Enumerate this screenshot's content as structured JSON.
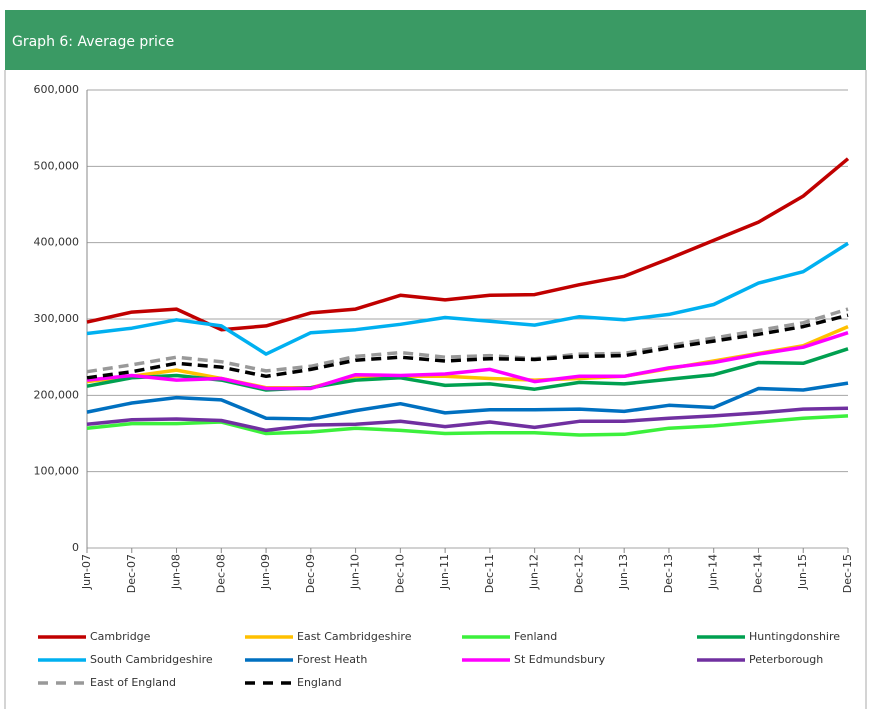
{
  "chart_data": {
    "type": "line",
    "title": "Graph 6: Average price",
    "categories": [
      "Jun-07",
      "Dec-07",
      "Jun-08",
      "Dec-08",
      "Jun-09",
      "Dec-09",
      "Jun-10",
      "Dec-10",
      "Jun-11",
      "Dec-11",
      "Jun-12",
      "Dec-12",
      "Jun-13",
      "Dec-13",
      "Jun-14",
      "Dec-14",
      "Jun-15",
      "Dec-15"
    ],
    "ylim": [
      0,
      600000
    ],
    "yticks": [
      0,
      {
        "value": 100000,
        "label": "100,000"
      },
      {
        "value": 200000,
        "label": "200,000"
      },
      {
        "value": 300000,
        "label": "300,000"
      },
      {
        "value": 400000,
        "label": "400,000"
      },
      {
        "value": 500000,
        "label": "500,000"
      },
      {
        "value": 600000,
        "label": "600,000"
      }
    ],
    "grid": true,
    "legend": "bottom",
    "series": [
      {
        "name": "Cambridge",
        "color": "#c00000",
        "values": [
          296000,
          309000,
          313000,
          286000,
          291000,
          308000,
          313000,
          331000,
          325000,
          331000,
          332000,
          345000,
          356000,
          379000,
          403000,
          427000,
          461000,
          510000
        ]
      },
      {
        "name": "East Cambridgeshire",
        "color": "#ffc000",
        "values": [
          218000,
          225000,
          233000,
          222000,
          210000,
          210000,
          225000,
          225000,
          225000,
          222000,
          220000,
          222000,
          225000,
          235000,
          245000,
          255000,
          265000,
          290000
        ]
      },
      {
        "name": "Fenland",
        "color": "#3cf03c",
        "values": [
          157000,
          163000,
          163000,
          165000,
          150000,
          152000,
          157000,
          154000,
          150000,
          151000,
          151000,
          148000,
          149000,
          157000,
          160000,
          165000,
          170000,
          173000
        ]
      },
      {
        "name": "Huntingdonshire",
        "color": "#00a050",
        "values": [
          212000,
          223000,
          226000,
          220000,
          207000,
          210000,
          220000,
          223000,
          213000,
          215000,
          208000,
          217000,
          215000,
          221000,
          227000,
          243000,
          242000,
          261000
        ]
      },
      {
        "name": "South Cambridgeshire",
        "color": "#00b0f0",
        "values": [
          281000,
          288000,
          299000,
          291000,
          254000,
          282000,
          286000,
          293000,
          302000,
          297000,
          292000,
          303000,
          299000,
          306000,
          319000,
          347000,
          362000,
          399000
        ]
      },
      {
        "name": "Forest Heath",
        "color": "#0070c0",
        "values": [
          178000,
          190000,
          197000,
          194000,
          170000,
          169000,
          180000,
          189000,
          177000,
          181000,
          181000,
          182000,
          179000,
          187000,
          184000,
          209000,
          207000,
          216000
        ]
      },
      {
        "name": "St Edmundsbury",
        "color": "#ff00ff",
        "values": [
          220000,
          226000,
          220000,
          222000,
          209000,
          209000,
          227000,
          226000,
          228000,
          234000,
          218000,
          225000,
          225000,
          236000,
          243000,
          254000,
          263000,
          282000
        ]
      },
      {
        "name": "Peterborough",
        "color": "#7030a0",
        "values": [
          162000,
          168000,
          169000,
          167000,
          154000,
          161000,
          162000,
          166000,
          159000,
          165000,
          158000,
          166000,
          166000,
          170000,
          173000,
          177000,
          182000,
          183000
        ]
      },
      {
        "name": "East of England",
        "color": "#999999",
        "dashed": true,
        "values": [
          231000,
          240000,
          250000,
          244000,
          232000,
          238000,
          251000,
          256000,
          250000,
          252000,
          248000,
          254000,
          255000,
          265000,
          275000,
          285000,
          295000,
          313000
        ]
      },
      {
        "name": "England",
        "color": "#000000",
        "dashed": true,
        "values": [
          223000,
          231000,
          242000,
          237000,
          225000,
          234000,
          246000,
          250000,
          245000,
          248000,
          247000,
          251000,
          252000,
          262000,
          271000,
          280000,
          290000,
          305000
        ]
      }
    ]
  }
}
